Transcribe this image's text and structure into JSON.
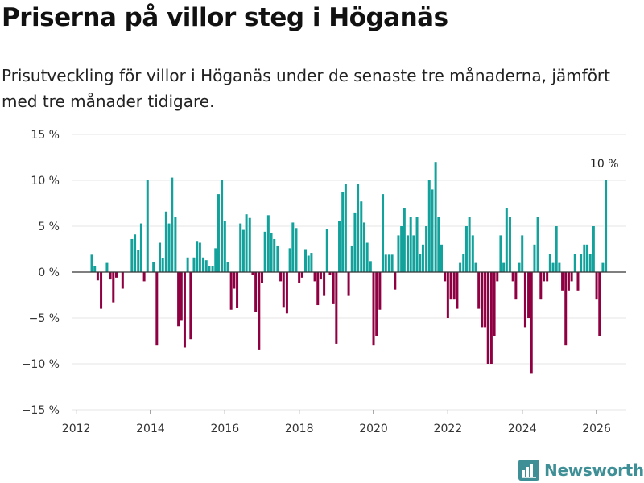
{
  "header": {
    "title": "Priserna på villor steg i Höganäs",
    "subtitle": "Prisutveckling för villor i Höganäs under de senaste tre månaderna, jämfört med tre månader tidigare."
  },
  "branding": {
    "logo_text": "Newsworthy"
  },
  "colors": {
    "positive": "#13a19b",
    "negative": "#8f0042",
    "logo": "#3f8f96"
  },
  "chart_data": {
    "type": "bar",
    "title": "Priserna på villor steg i Höganäs",
    "xlabel": "",
    "ylabel": "",
    "ylim": [
      -15,
      15
    ],
    "xlim": [
      2011.9,
      2026.8
    ],
    "yticks": [
      {
        "value": 15,
        "label": "15 %"
      },
      {
        "value": 10,
        "label": "10 %"
      },
      {
        "value": 5,
        "label": "5 %"
      },
      {
        "value": 0,
        "label": "0 %"
      },
      {
        "value": -5,
        "label": "−5 %"
      },
      {
        "value": -10,
        "label": "−10 %"
      },
      {
        "value": -15,
        "label": "−15 %"
      }
    ],
    "xticks": [
      {
        "value": 2012,
        "label": "2012"
      },
      {
        "value": 2014,
        "label": "2014"
      },
      {
        "value": 2016,
        "label": "2016"
      },
      {
        "value": 2018,
        "label": "2018"
      },
      {
        "value": 2020,
        "label": "2020"
      },
      {
        "value": 2022,
        "label": "2022"
      },
      {
        "value": 2024,
        "label": "2024"
      },
      {
        "value": 2026,
        "label": "2026"
      }
    ],
    "annotation": {
      "x": 2026.08,
      "value": 10,
      "label": "10 %"
    },
    "series": [
      {
        "name": "Prisutveckling",
        "points": [
          [
            2012.42,
            1.9
          ],
          [
            2012.5,
            0.7
          ],
          [
            2012.58,
            -0.9
          ],
          [
            2012.67,
            -4
          ],
          [
            2012.83,
            1
          ],
          [
            2012.92,
            -0.8
          ],
          [
            2013.0,
            -3.3
          ],
          [
            2013.08,
            -0.6
          ],
          [
            2013.25,
            -1.8
          ],
          [
            2013.5,
            3.6
          ],
          [
            2013.58,
            4.1
          ],
          [
            2013.67,
            2.4
          ],
          [
            2013.75,
            5.3
          ],
          [
            2013.83,
            -1
          ],
          [
            2013.92,
            10
          ],
          [
            2014.08,
            1.1
          ],
          [
            2014.17,
            -8
          ],
          [
            2014.25,
            3.2
          ],
          [
            2014.33,
            1.5
          ],
          [
            2014.42,
            6.6
          ],
          [
            2014.5,
            5.3
          ],
          [
            2014.58,
            10.3
          ],
          [
            2014.67,
            6
          ],
          [
            2014.75,
            -5.9
          ],
          [
            2014.83,
            -5.3
          ],
          [
            2014.92,
            -8.2
          ],
          [
            2015.0,
            1.6
          ],
          [
            2015.08,
            -7.3
          ],
          [
            2015.17,
            1.6
          ],
          [
            2015.25,
            3.4
          ],
          [
            2015.33,
            3.2
          ],
          [
            2015.42,
            1.6
          ],
          [
            2015.5,
            1.3
          ],
          [
            2015.58,
            0.7
          ],
          [
            2015.67,
            0.7
          ],
          [
            2015.75,
            2.6
          ],
          [
            2015.83,
            8.5
          ],
          [
            2015.92,
            10
          ],
          [
            2016.0,
            5.6
          ],
          [
            2016.08,
            1.1
          ],
          [
            2016.17,
            -4.1
          ],
          [
            2016.25,
            -1.8
          ],
          [
            2016.33,
            -3.9
          ],
          [
            2016.42,
            5.3
          ],
          [
            2016.5,
            4.6
          ],
          [
            2016.58,
            6.3
          ],
          [
            2016.67,
            5.9
          ],
          [
            2016.75,
            -0.3
          ],
          [
            2016.83,
            -4.3
          ],
          [
            2016.92,
            -8.5
          ],
          [
            2017.0,
            -1.2
          ],
          [
            2017.08,
            4.4
          ],
          [
            2017.17,
            6.2
          ],
          [
            2017.25,
            4.3
          ],
          [
            2017.33,
            3.6
          ],
          [
            2017.42,
            2.9
          ],
          [
            2017.5,
            -1
          ],
          [
            2017.58,
            -3.8
          ],
          [
            2017.67,
            -4.5
          ],
          [
            2017.75,
            2.6
          ],
          [
            2017.83,
            5.4
          ],
          [
            2017.92,
            4.8
          ],
          [
            2018.0,
            -1.2
          ],
          [
            2018.08,
            -0.6
          ],
          [
            2018.17,
            2.5
          ],
          [
            2018.25,
            1.8
          ],
          [
            2018.33,
            2.1
          ],
          [
            2018.42,
            -1
          ],
          [
            2018.5,
            -3.6
          ],
          [
            2018.58,
            -0.8
          ],
          [
            2018.67,
            -2.6
          ],
          [
            2018.75,
            4.7
          ],
          [
            2018.83,
            -0.3
          ],
          [
            2018.92,
            -3.5
          ],
          [
            2019.0,
            -7.8
          ],
          [
            2019.08,
            5.6
          ],
          [
            2019.17,
            8.7
          ],
          [
            2019.25,
            9.6
          ],
          [
            2019.33,
            -2.6
          ],
          [
            2019.42,
            2.9
          ],
          [
            2019.5,
            6.5
          ],
          [
            2019.58,
            9.6
          ],
          [
            2019.67,
            7.7
          ],
          [
            2019.75,
            5.4
          ],
          [
            2019.83,
            3.2
          ],
          [
            2019.92,
            1.2
          ],
          [
            2020.0,
            -8
          ],
          [
            2020.08,
            -7
          ],
          [
            2020.17,
            -4.1
          ],
          [
            2020.25,
            8.5
          ],
          [
            2020.33,
            1.9
          ],
          [
            2020.42,
            1.9
          ],
          [
            2020.5,
            1.9
          ],
          [
            2020.58,
            -1.9
          ],
          [
            2020.67,
            4
          ],
          [
            2020.75,
            5
          ],
          [
            2020.83,
            7
          ],
          [
            2020.92,
            4
          ],
          [
            2021.0,
            6
          ],
          [
            2021.08,
            4
          ],
          [
            2021.17,
            6
          ],
          [
            2021.25,
            2
          ],
          [
            2021.33,
            3
          ],
          [
            2021.42,
            5
          ],
          [
            2021.5,
            10
          ],
          [
            2021.58,
            9
          ],
          [
            2021.67,
            12
          ],
          [
            2021.75,
            6
          ],
          [
            2021.83,
            3
          ],
          [
            2021.92,
            -1
          ],
          [
            2022.0,
            -5
          ],
          [
            2022.08,
            -3
          ],
          [
            2022.17,
            -3
          ],
          [
            2022.25,
            -4
          ],
          [
            2022.33,
            1
          ],
          [
            2022.42,
            2
          ],
          [
            2022.5,
            5
          ],
          [
            2022.58,
            6
          ],
          [
            2022.67,
            4
          ],
          [
            2022.75,
            1
          ],
          [
            2022.83,
            -4
          ],
          [
            2022.92,
            -6
          ],
          [
            2023.0,
            -6
          ],
          [
            2023.08,
            -10
          ],
          [
            2023.17,
            -10
          ],
          [
            2023.25,
            -7
          ],
          [
            2023.33,
            -1
          ],
          [
            2023.42,
            4
          ],
          [
            2023.5,
            1
          ],
          [
            2023.58,
            7
          ],
          [
            2023.67,
            6
          ],
          [
            2023.75,
            -1
          ],
          [
            2023.83,
            -3
          ],
          [
            2023.92,
            1
          ],
          [
            2024.0,
            4
          ],
          [
            2024.08,
            -6
          ],
          [
            2024.17,
            -5
          ],
          [
            2024.25,
            -11
          ],
          [
            2024.33,
            3
          ],
          [
            2024.42,
            6
          ],
          [
            2024.5,
            -3
          ],
          [
            2024.58,
            -1
          ],
          [
            2024.67,
            -1
          ],
          [
            2024.75,
            2
          ],
          [
            2024.83,
            1
          ],
          [
            2024.92,
            5
          ],
          [
            2025.0,
            1
          ],
          [
            2025.08,
            -2
          ],
          [
            2025.17,
            -8
          ],
          [
            2025.25,
            -2
          ],
          [
            2025.33,
            -1
          ],
          [
            2025.42,
            2
          ],
          [
            2025.5,
            -2
          ],
          [
            2025.58,
            2
          ],
          [
            2025.67,
            3
          ],
          [
            2025.75,
            3
          ],
          [
            2025.83,
            2
          ],
          [
            2025.92,
            5
          ],
          [
            2026.0,
            -3
          ],
          [
            2026.08,
            -7
          ],
          [
            2026.17,
            1
          ],
          [
            2026.25,
            10
          ]
        ]
      }
    ]
  }
}
